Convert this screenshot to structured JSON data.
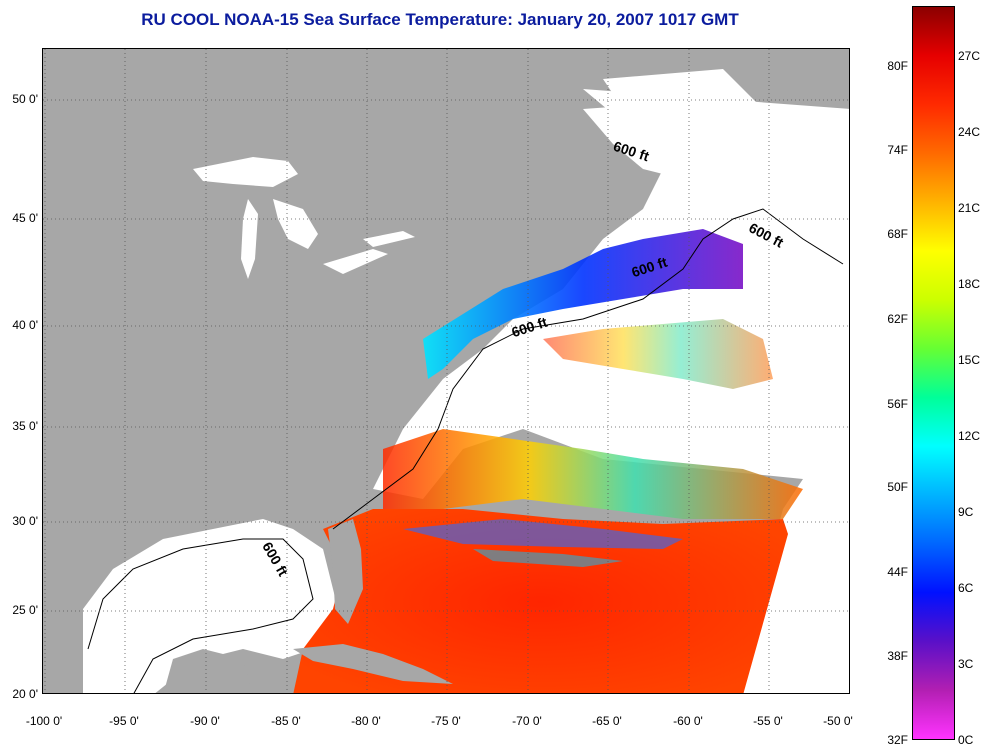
{
  "title": "RU COOL  NOAA-15  Sea Surface Temperature:  January 20, 2007 1017 GMT",
  "lat_labels": [
    "50 0'",
    "45 0'",
    "40 0'",
    "35 0'",
    "30 0'",
    "25 0'",
    "20 0'"
  ],
  "lon_labels": [
    "-100 0'",
    "-95 0'",
    "-90 0'",
    "-85 0'",
    "-80 0'",
    "-75 0'",
    "-70 0'",
    "-65 0'",
    "-60 0'",
    "-55 0'",
    "-50 0'"
  ],
  "colorbar": {
    "fahrenheit_labels": [
      "80F",
      "74F",
      "68F",
      "62F",
      "56F",
      "50F",
      "44F",
      "38F",
      "32F"
    ],
    "celsius_labels": [
      "27C",
      "24C",
      "21C",
      "18C",
      "15C",
      "12C",
      "9C",
      "6C",
      "3C",
      "0C"
    ],
    "colors": [
      "#ff33ff",
      "#b21fb2",
      "#5a10c8",
      "#0011ff",
      "#0066ff",
      "#00b3ff",
      "#00ffff",
      "#00ff99",
      "#66ff33",
      "#ccff00",
      "#ffff00",
      "#ffb300",
      "#ff6a00",
      "#ff2a00",
      "#e60000",
      "#8b0000"
    ]
  },
  "isobath_labels": [
    "600 ft",
    "600 ft",
    "600 ft",
    "600 ft",
    "600 ft"
  ],
  "colors": {
    "land": "#a7a7a7",
    "no_data": "#ffffff",
    "title": "#0b1c9e"
  }
}
